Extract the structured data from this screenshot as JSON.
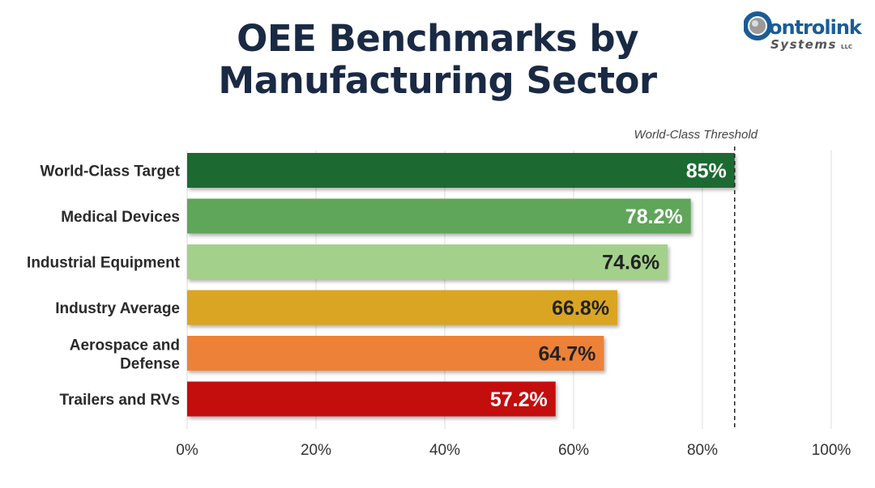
{
  "title_line1": "OEE Benchmarks by",
  "title_line2": "Manufacturing Sector",
  "logo": {
    "text_main": "ontrolink",
    "text_sub": "Systems",
    "text_llc": "LLC",
    "colors": {
      "blue": "#1a5c96",
      "gray": "#555555"
    }
  },
  "chart_data": {
    "type": "bar",
    "orientation": "horizontal",
    "categories": [
      "World-Class Target",
      "Medical Devices",
      "Industrial Equipment",
      "Industry Average",
      "Aerospace and Defense",
      "Trailers and RVs"
    ],
    "values": [
      85,
      78.2,
      74.6,
      66.8,
      64.7,
      57.2
    ],
    "data_labels": [
      "85%",
      "78.2%",
      "74.6%",
      "66.8%",
      "64.7%",
      "57.2%"
    ],
    "colors": [
      "#1f6b30",
      "#5ea55a",
      "#a3d18c",
      "#d9a520",
      "#ed8138",
      "#c40c0c"
    ],
    "label_colors": [
      "#ffffff",
      "#ffffff",
      "#222222",
      "#222222",
      "#222222",
      "#ffffff"
    ],
    "xlim": [
      0,
      100
    ],
    "xticks": [
      0,
      20,
      40,
      60,
      80,
      100
    ],
    "xtick_labels": [
      "0%",
      "20%",
      "40%",
      "60%",
      "80%",
      "100%"
    ],
    "grid": true,
    "reference_line": {
      "value": 85,
      "label": "World-Class Threshold",
      "style": "dashed"
    }
  }
}
